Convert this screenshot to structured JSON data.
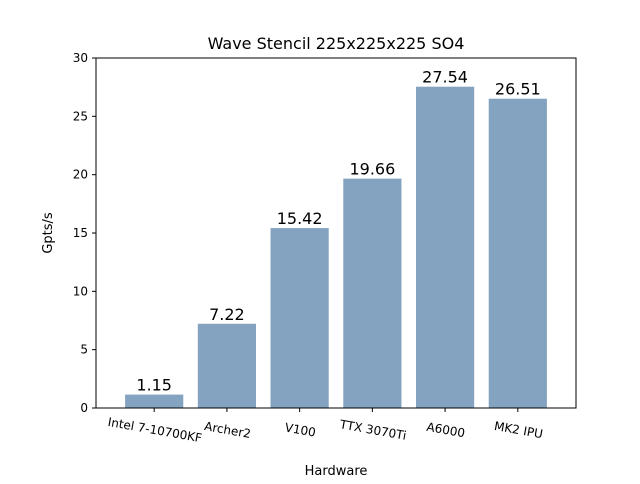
{
  "chart_data": {
    "type": "bar",
    "title": "Wave Stencil 225x225x225 SO4",
    "xlabel": "Hardware",
    "ylabel": "Gpts/s",
    "categories": [
      "Intel 7-10700KF",
      "Archer2",
      "V100",
      "TTX 3070Ti",
      "A6000",
      "MK2 IPU"
    ],
    "values": [
      1.15,
      7.22,
      15.42,
      19.66,
      27.54,
      26.51
    ],
    "value_labels": [
      "1.15",
      "7.22",
      "15.42",
      "19.66",
      "27.54",
      "26.51"
    ],
    "ylim": [
      0,
      30
    ],
    "yticks": [
      0,
      5,
      10,
      15,
      20,
      25,
      30
    ],
    "ytick_labels": [
      "0",
      "5",
      "10",
      "15",
      "20",
      "25",
      "30"
    ],
    "bar_color": "#84a3c1",
    "grid": false
  }
}
